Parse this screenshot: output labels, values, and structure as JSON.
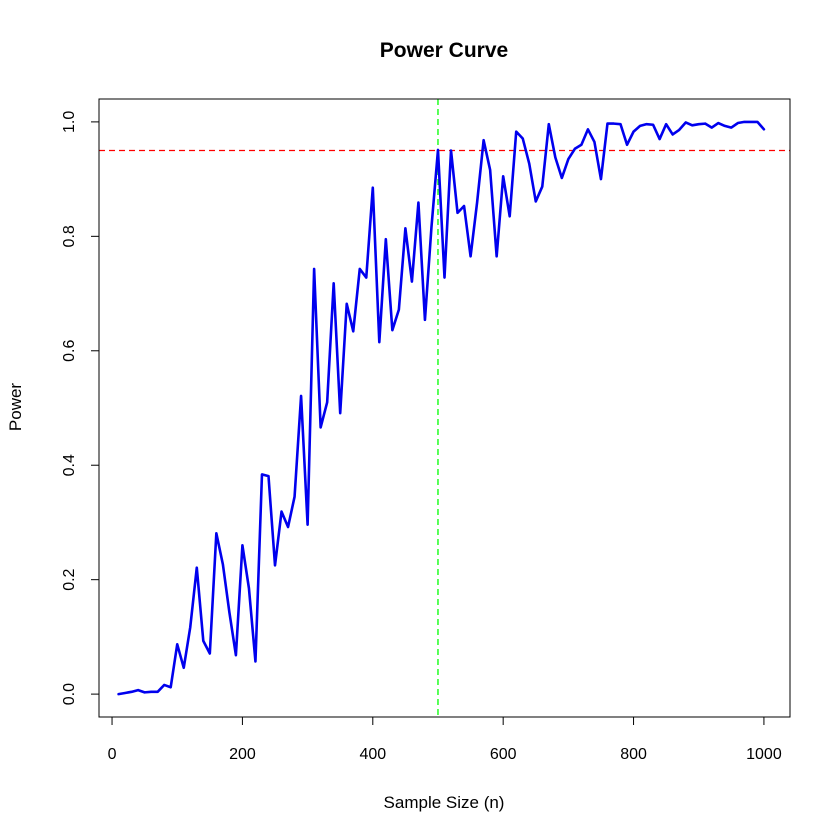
{
  "chart_data": {
    "type": "line",
    "title": "Power Curve",
    "xlabel": "Sample Size (n)",
    "ylabel": "Power",
    "xlim": [
      -20,
      1040
    ],
    "ylim": [
      -0.04,
      1.04
    ],
    "x_ticks": [
      0,
      200,
      400,
      600,
      800,
      1000
    ],
    "x_tick_labels": [
      "0",
      "200",
      "400",
      "600",
      "800",
      "1000"
    ],
    "y_ticks": [
      0.0,
      0.2,
      0.4,
      0.6,
      0.8,
      1.0
    ],
    "y_tick_labels": [
      "0.0",
      "0.2",
      "0.4",
      "0.6",
      "0.8",
      "1.0"
    ],
    "grid": false,
    "reference_lines": [
      {
        "orientation": "horizontal",
        "value": 0.95,
        "color": "#ff0000",
        "style": "dashed"
      },
      {
        "orientation": "vertical",
        "value": 500,
        "color": "#00ff00",
        "style": "dashed"
      }
    ],
    "series": [
      {
        "color": "#0000ee",
        "x": [
          10,
          20,
          30,
          40,
          50,
          60,
          70,
          80,
          90,
          100,
          110,
          120,
          130,
          140,
          150,
          160,
          170,
          180,
          190,
          200,
          210,
          220,
          230,
          240,
          250,
          260,
          270,
          280,
          290,
          300,
          310,
          320,
          330,
          340,
          350,
          360,
          370,
          380,
          390,
          400,
          410,
          420,
          430,
          440,
          450,
          460,
          470,
          480,
          490,
          500,
          510,
          520,
          530,
          540,
          550,
          560,
          570,
          580,
          590,
          600,
          610,
          620,
          630,
          640,
          650,
          660,
          670,
          680,
          690,
          700,
          710,
          720,
          730,
          740,
          750,
          760,
          770,
          780,
          790,
          800,
          810,
          820,
          830,
          840,
          850,
          860,
          870,
          880,
          890,
          900,
          910,
          920,
          930,
          940,
          950,
          960,
          970,
          980,
          990,
          1000
        ],
        "y": [
          0.0,
          0.002,
          0.004,
          0.007,
          0.003,
          0.004,
          0.004,
          0.016,
          0.012,
          0.087,
          0.046,
          0.117,
          0.221,
          0.093,
          0.071,
          0.281,
          0.227,
          0.143,
          0.068,
          0.26,
          0.185,
          0.057,
          0.384,
          0.381,
          0.225,
          0.319,
          0.292,
          0.345,
          0.521,
          0.296,
          0.743,
          0.466,
          0.51,
          0.718,
          0.491,
          0.682,
          0.634,
          0.743,
          0.728,
          0.885,
          0.615,
          0.795,
          0.636,
          0.672,
          0.814,
          0.721,
          0.859,
          0.654,
          0.816,
          0.951,
          0.728,
          0.95,
          0.841,
          0.853,
          0.765,
          0.859,
          0.968,
          0.916,
          0.765,
          0.905,
          0.835,
          0.983,
          0.971,
          0.927,
          0.861,
          0.887,
          0.996,
          0.938,
          0.902,
          0.935,
          0.953,
          0.96,
          0.987,
          0.965,
          0.9,
          0.997,
          0.997,
          0.996,
          0.96,
          0.983,
          0.993,
          0.996,
          0.995,
          0.97,
          0.996,
          0.978,
          0.986,
          0.999,
          0.994,
          0.996,
          0.997,
          0.99,
          0.998,
          0.993,
          0.99,
          0.998,
          1.0,
          1.0,
          1.0,
          0.987
        ]
      }
    ]
  }
}
